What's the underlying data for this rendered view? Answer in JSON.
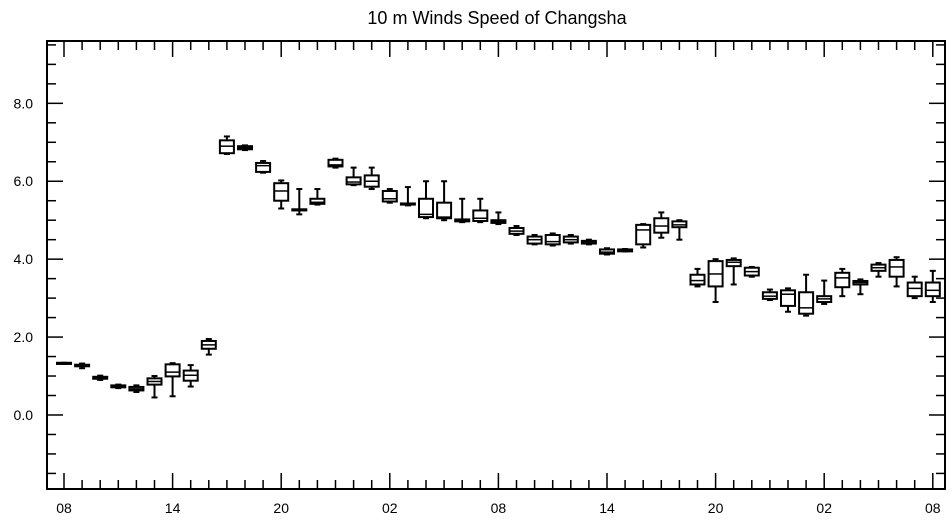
{
  "chart_data": {
    "type": "box",
    "title": "10 m Winds Speed of Changsha",
    "xlabel": "",
    "ylabel": "",
    "ylim": [
      -1.9,
      9.6
    ],
    "yticks": [
      0.0,
      2.0,
      4.0,
      6.0,
      8.0
    ],
    "ytick_labels": [
      "0.0",
      "2.0",
      "4.0",
      "6.0",
      "8.0"
    ],
    "yminor_step": 0.5,
    "xlim": [
      -0.7,
      46.3
    ],
    "xticks": [
      0,
      6,
      12,
      18,
      24,
      30,
      36,
      42,
      48
    ],
    "xtick_labels": [
      "08",
      "14",
      "20",
      "02",
      "08",
      "14",
      "20",
      "02",
      "08"
    ],
    "grid": false,
    "boxes": [
      {
        "x": 0,
        "min": 1.31,
        "q1": 1.31,
        "median": 1.32,
        "q3": 1.34,
        "max": 1.34
      },
      {
        "x": 1,
        "min": 1.2,
        "q1": 1.25,
        "median": 1.27,
        "q3": 1.29,
        "max": 1.32
      },
      {
        "x": 2,
        "min": 0.9,
        "q1": 0.93,
        "median": 0.96,
        "q3": 0.98,
        "max": 1.01
      },
      {
        "x": 3,
        "min": 0.69,
        "q1": 0.71,
        "median": 0.73,
        "q3": 0.76,
        "max": 0.78
      },
      {
        "x": 4,
        "min": 0.59,
        "q1": 0.63,
        "median": 0.67,
        "q3": 0.72,
        "max": 0.76
      },
      {
        "x": 5,
        "min": 0.45,
        "q1": 0.78,
        "median": 0.86,
        "q3": 0.94,
        "max": 1.0
      },
      {
        "x": 6,
        "min": 0.48,
        "q1": 0.99,
        "median": 1.1,
        "q3": 1.3,
        "max": 1.33
      },
      {
        "x": 7,
        "min": 0.73,
        "q1": 0.88,
        "median": 1.02,
        "q3": 1.14,
        "max": 1.28
      },
      {
        "x": 8,
        "min": 1.55,
        "q1": 1.7,
        "median": 1.8,
        "q3": 1.9,
        "max": 1.95
      },
      {
        "x": 9,
        "min": 6.7,
        "q1": 6.72,
        "median": 6.9,
        "q3": 7.05,
        "max": 7.15
      },
      {
        "x": 10,
        "min": 6.8,
        "q1": 6.82,
        "median": 6.86,
        "q3": 6.9,
        "max": 6.92
      },
      {
        "x": 11,
        "min": 6.22,
        "q1": 6.24,
        "median": 6.4,
        "q3": 6.47,
        "max": 6.52
      },
      {
        "x": 12,
        "min": 5.3,
        "q1": 5.5,
        "median": 5.75,
        "q3": 5.95,
        "max": 6.02
      },
      {
        "x": 13,
        "min": 5.15,
        "q1": 5.25,
        "median": 5.26,
        "q3": 5.28,
        "max": 5.8
      },
      {
        "x": 14,
        "min": 5.4,
        "q1": 5.42,
        "median": 5.46,
        "q3": 5.55,
        "max": 5.8
      },
      {
        "x": 15,
        "min": 6.35,
        "q1": 6.38,
        "median": 6.42,
        "q3": 6.55,
        "max": 6.58
      },
      {
        "x": 16,
        "min": 5.9,
        "q1": 5.92,
        "median": 5.98,
        "q3": 6.1,
        "max": 6.35
      },
      {
        "x": 17,
        "min": 5.8,
        "q1": 5.86,
        "median": 6.0,
        "q3": 6.15,
        "max": 6.35
      },
      {
        "x": 18,
        "min": 5.45,
        "q1": 5.48,
        "median": 5.55,
        "q3": 5.75,
        "max": 5.8
      },
      {
        "x": 19,
        "min": 5.38,
        "q1": 5.4,
        "median": 5.42,
        "q3": 5.43,
        "max": 5.85
      },
      {
        "x": 20,
        "min": 5.05,
        "q1": 5.08,
        "median": 5.15,
        "q3": 5.55,
        "max": 6.0
      },
      {
        "x": 21,
        "min": 5.0,
        "q1": 5.05,
        "median": 5.08,
        "q3": 5.45,
        "max": 6.0
      },
      {
        "x": 22,
        "min": 4.95,
        "q1": 4.97,
        "median": 4.99,
        "q3": 5.02,
        "max": 5.55
      },
      {
        "x": 23,
        "min": 4.95,
        "q1": 4.98,
        "median": 5.05,
        "q3": 5.25,
        "max": 5.55
      },
      {
        "x": 24,
        "min": 4.9,
        "q1": 4.93,
        "median": 4.97,
        "q3": 5.0,
        "max": 5.2
      },
      {
        "x": 25,
        "min": 4.62,
        "q1": 4.65,
        "median": 4.72,
        "q3": 4.8,
        "max": 4.85
      },
      {
        "x": 26,
        "min": 4.38,
        "q1": 4.4,
        "median": 4.5,
        "q3": 4.58,
        "max": 4.62
      },
      {
        "x": 27,
        "min": 4.35,
        "q1": 4.38,
        "median": 4.45,
        "q3": 4.62,
        "max": 4.66
      },
      {
        "x": 28,
        "min": 4.4,
        "q1": 4.43,
        "median": 4.5,
        "q3": 4.58,
        "max": 4.62
      },
      {
        "x": 29,
        "min": 4.38,
        "q1": 4.4,
        "median": 4.44,
        "q3": 4.47,
        "max": 4.5
      },
      {
        "x": 30,
        "min": 4.12,
        "q1": 4.14,
        "median": 4.18,
        "q3": 4.25,
        "max": 4.28
      },
      {
        "x": 31,
        "min": 4.2,
        "q1": 4.2,
        "median": 4.22,
        "q3": 4.25,
        "max": 4.26
      },
      {
        "x": 32,
        "min": 4.3,
        "q1": 4.38,
        "median": 4.75,
        "q3": 4.88,
        "max": 4.9
      },
      {
        "x": 33,
        "min": 4.55,
        "q1": 4.68,
        "median": 4.85,
        "q3": 5.05,
        "max": 5.2
      },
      {
        "x": 34,
        "min": 4.5,
        "q1": 4.82,
        "median": 4.88,
        "q3": 4.97,
        "max": 5.0
      },
      {
        "x": 35,
        "min": 3.3,
        "q1": 3.35,
        "median": 3.45,
        "q3": 3.6,
        "max": 3.75
      },
      {
        "x": 36,
        "min": 2.9,
        "q1": 3.3,
        "median": 3.62,
        "q3": 3.95,
        "max": 4.0
      },
      {
        "x": 37,
        "min": 3.35,
        "q1": 3.82,
        "median": 3.92,
        "q3": 3.98,
        "max": 4.02
      },
      {
        "x": 38,
        "min": 3.55,
        "q1": 3.58,
        "median": 3.68,
        "q3": 3.78,
        "max": 3.8
      },
      {
        "x": 39,
        "min": 2.95,
        "q1": 2.98,
        "median": 3.05,
        "q3": 3.15,
        "max": 3.22
      },
      {
        "x": 40,
        "min": 2.65,
        "q1": 2.8,
        "median": 3.1,
        "q3": 3.2,
        "max": 3.25
      },
      {
        "x": 41,
        "min": 2.55,
        "q1": 2.6,
        "median": 2.75,
        "q3": 3.15,
        "max": 3.6
      },
      {
        "x": 42,
        "min": 2.85,
        "q1": 2.9,
        "median": 2.98,
        "q3": 3.05,
        "max": 3.45
      },
      {
        "x": 43,
        "min": 3.05,
        "q1": 3.28,
        "median": 3.52,
        "q3": 3.65,
        "max": 3.75
      },
      {
        "x": 44,
        "min": 3.1,
        "q1": 3.35,
        "median": 3.4,
        "q3": 3.44,
        "max": 3.48
      },
      {
        "x": 45,
        "min": 3.55,
        "q1": 3.7,
        "median": 3.78,
        "q3": 3.86,
        "max": 3.9
      },
      {
        "x": 46,
        "min": 3.3,
        "q1": 3.55,
        "median": 3.8,
        "q3": 3.98,
        "max": 4.05
      },
      {
        "x": 47,
        "min": 3.0,
        "q1": 3.05,
        "median": 3.25,
        "q3": 3.4,
        "max": 3.55
      },
      {
        "x": 48,
        "min": 2.9,
        "q1": 3.05,
        "median": 3.2,
        "q3": 3.4,
        "max": 3.7
      }
    ]
  }
}
